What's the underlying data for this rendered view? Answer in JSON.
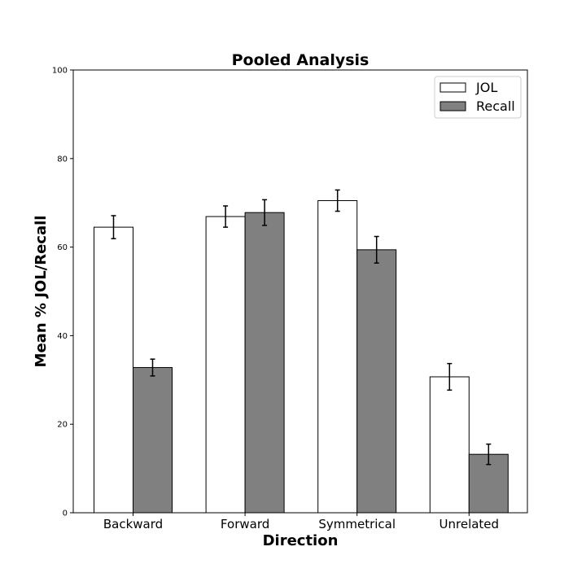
{
  "chart_data": {
    "type": "bar",
    "title": "Pooled Analysis",
    "xlabel": "Direction",
    "ylabel": "Mean % JOL/Recall",
    "categories": [
      "Backward",
      "Forward",
      "Symmetrical",
      "Unrelated"
    ],
    "series": [
      {
        "name": "JOL",
        "color": "#ffffff",
        "values": [
          64.5,
          66.9,
          70.5,
          30.7
        ],
        "errors": [
          2.6,
          2.4,
          2.4,
          3.0
        ]
      },
      {
        "name": "Recall",
        "color": "#808080",
        "values": [
          32.8,
          67.8,
          59.4,
          13.2
        ],
        "errors": [
          1.9,
          2.9,
          3.0,
          2.3
        ]
      }
    ],
    "ylim": [
      0,
      100
    ],
    "yticks": [
      0,
      20,
      40,
      60,
      80,
      100
    ],
    "ytick_labels": [
      "0",
      "20",
      "40",
      "60",
      "80",
      "100"
    ],
    "grid": false,
    "legend_position": "top-right",
    "edge_color": "#000000"
  }
}
